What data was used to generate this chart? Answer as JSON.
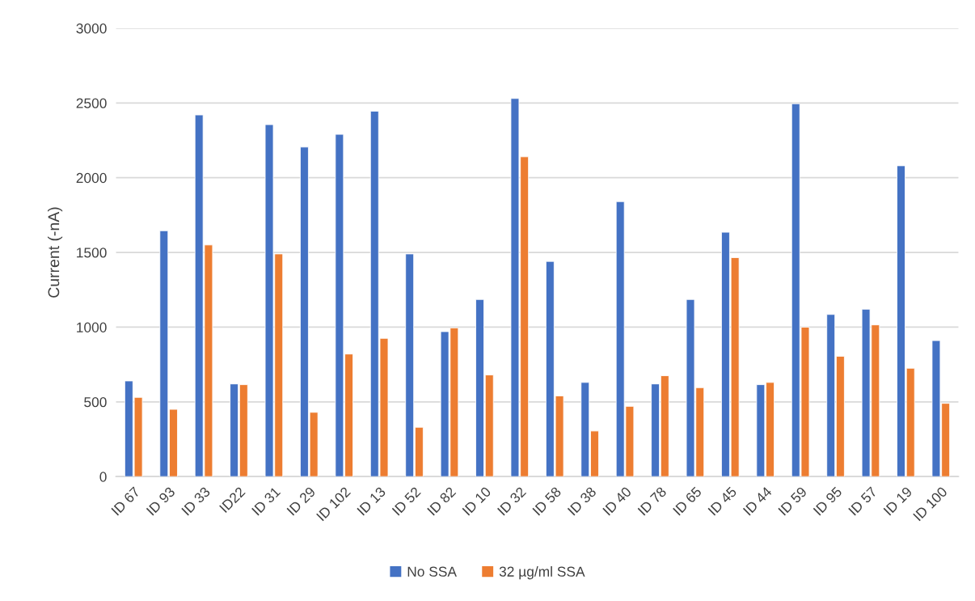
{
  "chart_data": {
    "type": "bar",
    "ylabel": "Current (-nA)",
    "categories": [
      "ID 67",
      "ID 93",
      "ID 33",
      "ID22",
      "ID 31",
      "ID 29",
      "ID 102",
      "ID 13",
      "ID 52",
      "ID 82",
      "ID 10",
      "ID 32",
      "ID 58",
      "ID 38",
      "ID 40",
      "ID 78",
      "ID 65",
      "ID 45",
      "ID 44",
      "ID 59",
      "ID 95",
      "ID 57",
      "ID 19",
      "ID 100"
    ],
    "series": [
      {
        "name": "No SSA",
        "color": "#4472c4",
        "values": [
          640,
          1645,
          2420,
          620,
          2355,
          2205,
          2290,
          2445,
          1490,
          970,
          1185,
          2530,
          1440,
          630,
          1840,
          620,
          1185,
          1635,
          615,
          2495,
          1085,
          1120,
          2080,
          910
        ]
      },
      {
        "name": "32 µg/ml SSA",
        "color": "#ed7d31",
        "values": [
          530,
          450,
          1550,
          615,
          1490,
          430,
          820,
          925,
          330,
          995,
          680,
          2140,
          540,
          305,
          470,
          675,
          595,
          1465,
          630,
          1000,
          805,
          1015,
          725,
          490
        ]
      }
    ],
    "ylim": [
      0,
      3000
    ],
    "yticks": [
      0,
      500,
      1000,
      1500,
      2000,
      2500,
      3000
    ],
    "grid": "y",
    "legend": "bottom"
  }
}
